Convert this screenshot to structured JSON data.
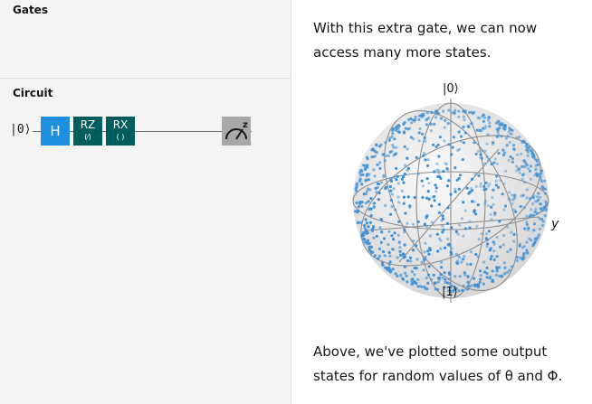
{
  "left_panel": {
    "gates_title": "Gates",
    "circuit_title": "Circuit",
    "qubit_label": "|0⟩",
    "gates": [
      {
        "label": "H",
        "param": "",
        "color": "#1f8fe0"
      },
      {
        "label": "RZ",
        "param": "(⁄)",
        "color": "#005d5d"
      },
      {
        "label": "RX",
        "param": "(  )",
        "color": "#005d5d"
      }
    ],
    "measure_axis": "z"
  },
  "right_panel": {
    "intro_text": "With this extra gate, we can now access many more states.",
    "outro_text": "Above, we've plotted some output states for random values of θ and Φ."
  },
  "bloch": {
    "top_label": "|0⟩",
    "bottom_label": "|1⟩",
    "y_label": "y",
    "point_color": "#3a8fd6",
    "point_count": 900,
    "sphere_color": "#e8e8e8",
    "grid_color": "#8d8d8d"
  }
}
